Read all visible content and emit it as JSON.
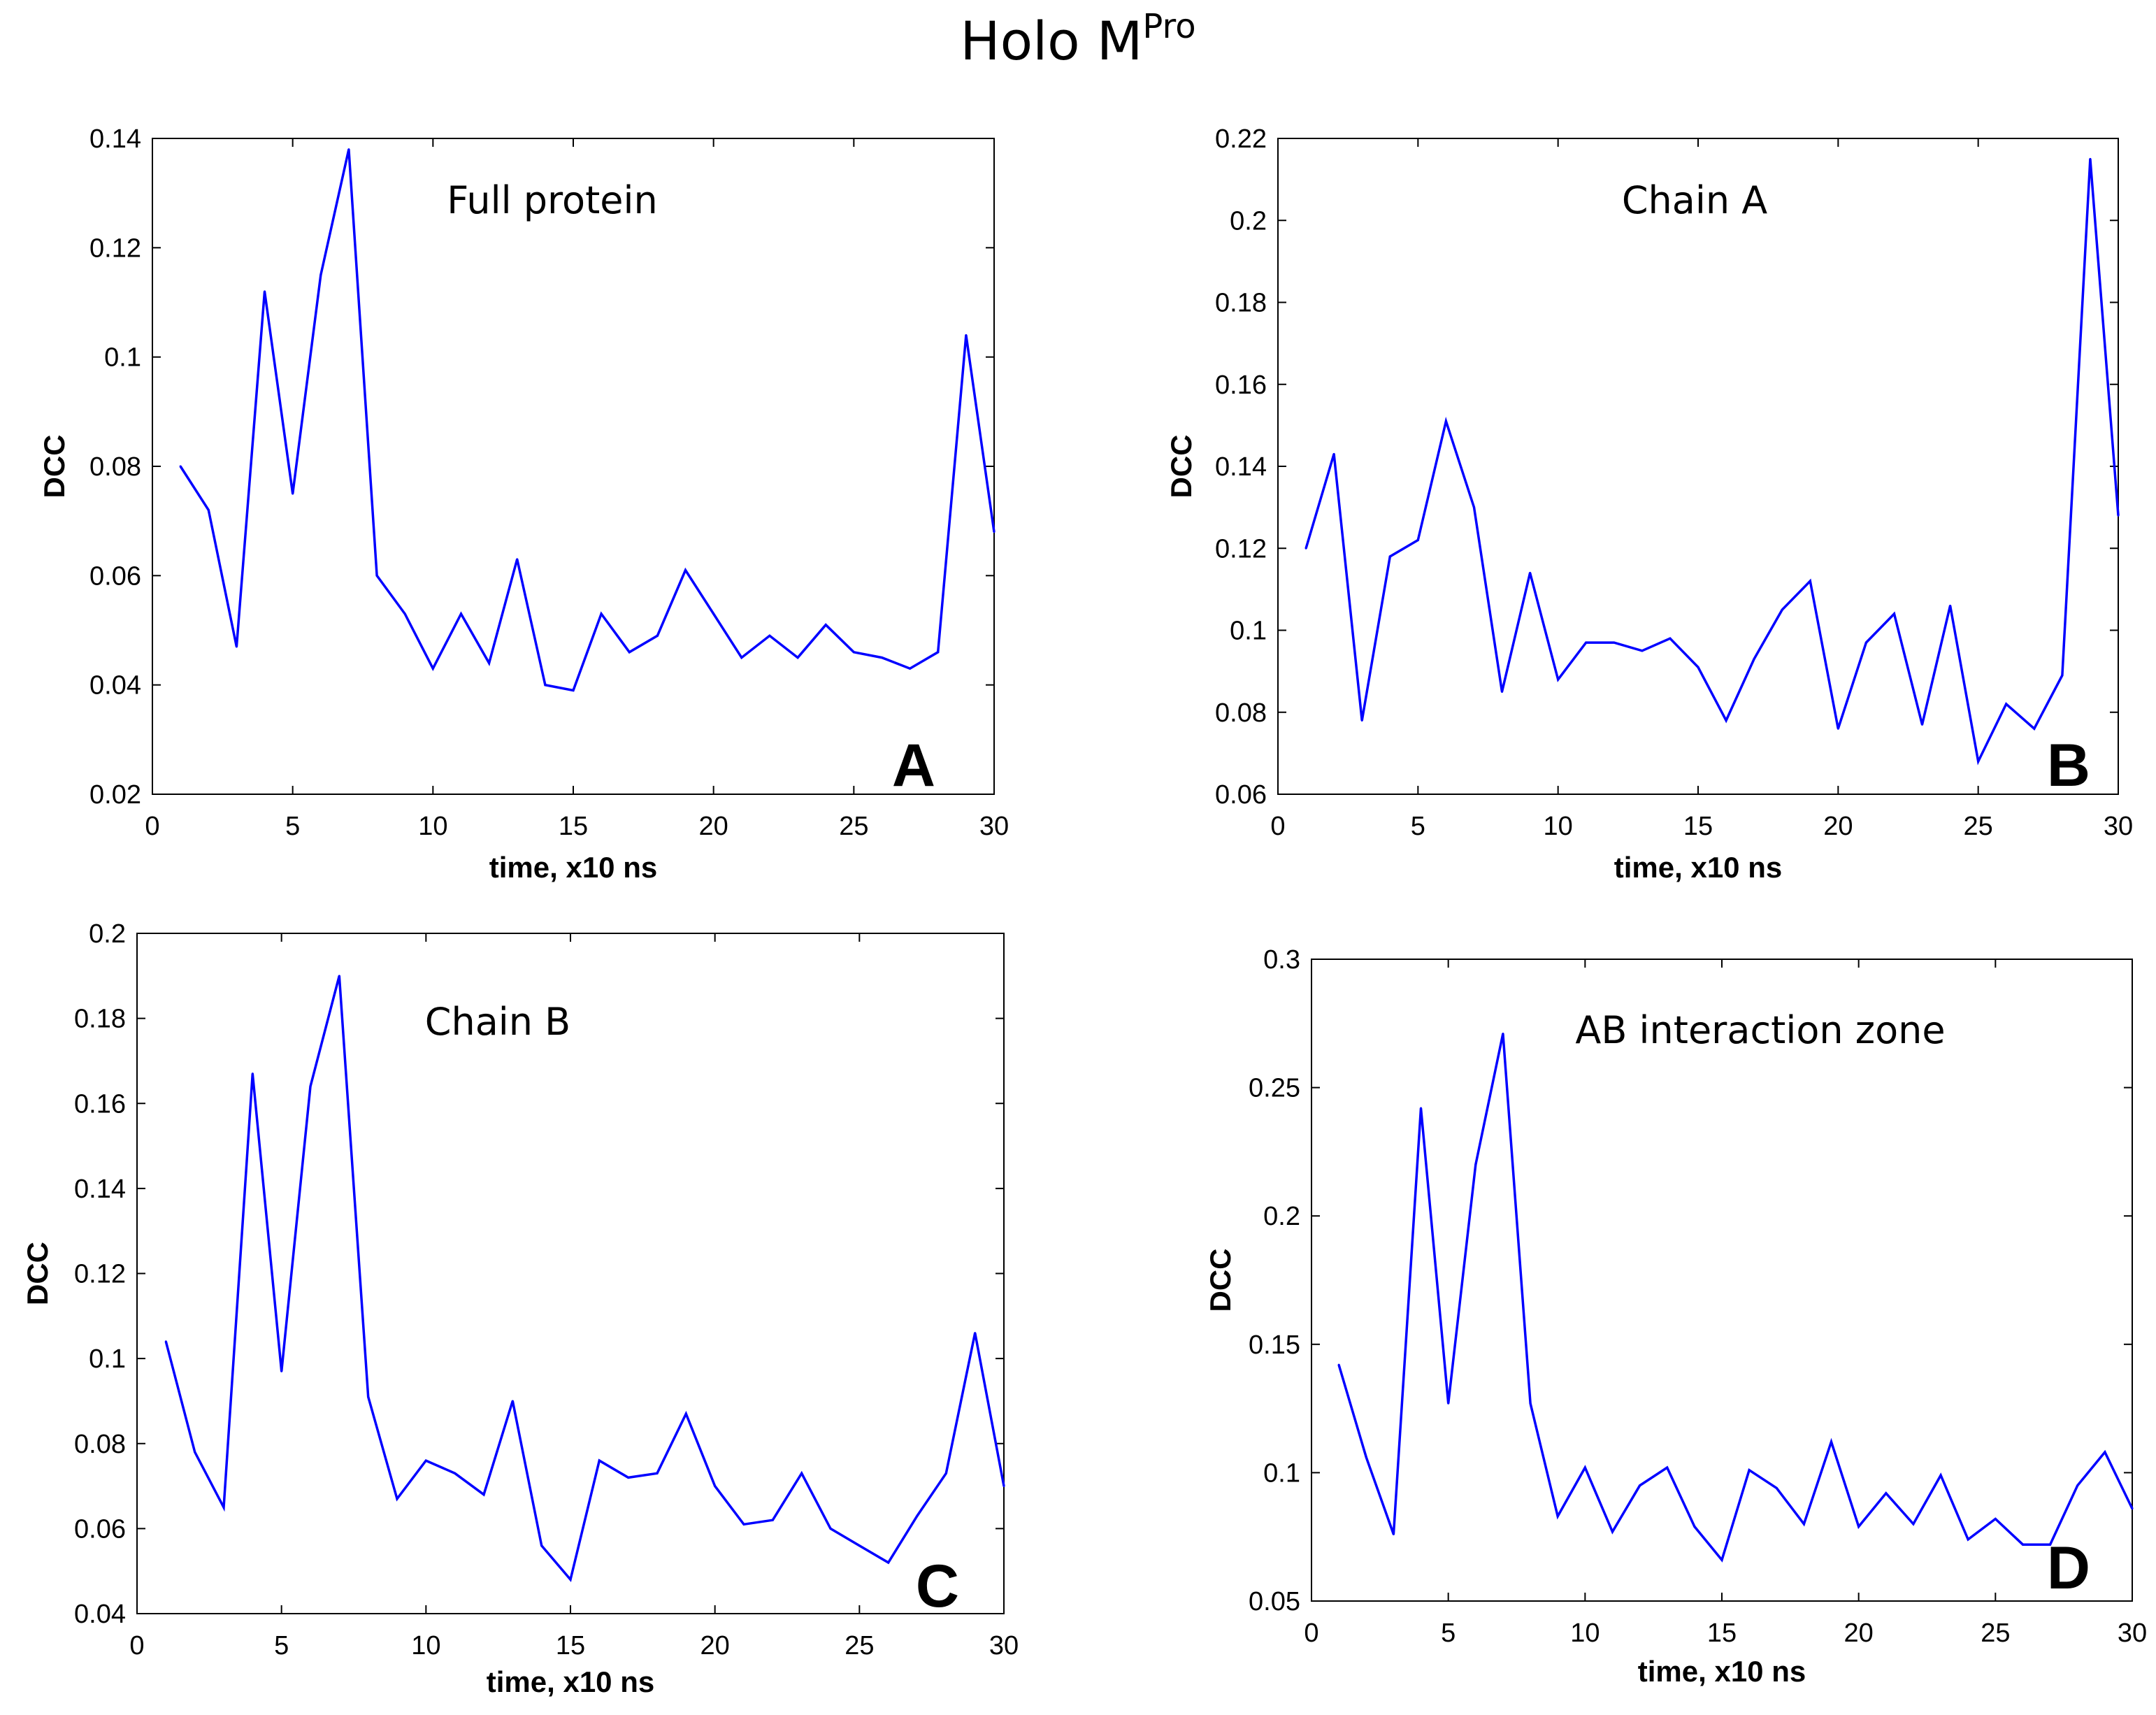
{
  "figure_title": {
    "main": "Holo M",
    "superscript": "Pro"
  },
  "colors": {
    "line": "#0000ff",
    "axis": "#000000",
    "background": "#ffffff"
  },
  "chart_data": [
    {
      "type": "line",
      "panel_letter": "A",
      "title": "Full protein",
      "xlabel": "time, x10 ns",
      "ylabel": "DCC",
      "xlim": [
        0,
        30
      ],
      "ylim": [
        0.02,
        0.14
      ],
      "xticks": [
        0,
        5,
        10,
        15,
        20,
        25,
        30
      ],
      "xtick_labels": [
        "0",
        "5",
        "10",
        "15",
        "20",
        "25",
        "30"
      ],
      "yticks": [
        0.02,
        0.04,
        0.06,
        0.08,
        0.1,
        0.12,
        0.14
      ],
      "ytick_labels": [
        "0.02",
        "0.04",
        "0.06",
        "0.08",
        "0.1",
        "0.12",
        "0.14"
      ],
      "x": [
        1,
        2,
        3,
        4,
        5,
        6,
        7,
        8,
        9,
        10,
        11,
        12,
        13,
        14,
        15,
        16,
        17,
        18,
        19,
        20,
        21,
        22,
        23,
        24,
        25,
        26,
        27,
        28,
        29,
        30
      ],
      "values": [
        0.08,
        0.072,
        0.047,
        0.112,
        0.075,
        0.115,
        0.138,
        0.06,
        0.053,
        0.043,
        0.053,
        0.044,
        0.063,
        0.04,
        0.039,
        0.053,
        0.046,
        0.049,
        0.061,
        0.053,
        0.045,
        0.049,
        0.045,
        0.051,
        0.046,
        0.045,
        0.043,
        0.046,
        0.104,
        0.068
      ]
    },
    {
      "type": "line",
      "panel_letter": "B",
      "title": "Chain A",
      "xlabel": "time, x10 ns",
      "ylabel": "DCC",
      "xlim": [
        0,
        30
      ],
      "ylim": [
        0.06,
        0.22
      ],
      "xticks": [
        0,
        5,
        10,
        15,
        20,
        25,
        30
      ],
      "xtick_labels": [
        "0",
        "5",
        "10",
        "15",
        "20",
        "25",
        "30"
      ],
      "yticks": [
        0.06,
        0.08,
        0.1,
        0.12,
        0.14,
        0.16,
        0.18,
        0.2,
        0.22
      ],
      "ytick_labels": [
        "0.06",
        "0.08",
        "0.1",
        "0.12",
        "0.14",
        "0.16",
        "0.18",
        "0.2",
        "0.22"
      ],
      "x": [
        1,
        2,
        3,
        4,
        5,
        6,
        7,
        8,
        9,
        10,
        11,
        12,
        13,
        14,
        15,
        16,
        17,
        18,
        19,
        20,
        21,
        22,
        23,
        24,
        25,
        26,
        27,
        28,
        29,
        30
      ],
      "values": [
        0.12,
        0.143,
        0.078,
        0.118,
        0.122,
        0.151,
        0.13,
        0.085,
        0.114,
        0.088,
        0.097,
        0.097,
        0.095,
        0.098,
        0.091,
        0.078,
        0.093,
        0.105,
        0.112,
        0.076,
        0.097,
        0.104,
        0.077,
        0.106,
        0.068,
        0.082,
        0.076,
        0.089,
        0.215,
        0.128
      ]
    },
    {
      "type": "line",
      "panel_letter": "C",
      "title": "Chain B",
      "xlabel": "time, x10 ns",
      "ylabel": "DCC",
      "xlim": [
        0,
        30
      ],
      "ylim": [
        0.04,
        0.2
      ],
      "xticks": [
        0,
        5,
        10,
        15,
        20,
        25,
        30
      ],
      "xtick_labels": [
        "0",
        "5",
        "10",
        "15",
        "20",
        "25",
        "30"
      ],
      "yticks": [
        0.04,
        0.06,
        0.08,
        0.1,
        0.12,
        0.14,
        0.16,
        0.18,
        0.2
      ],
      "ytick_labels": [
        "0.04",
        "0.06",
        "0.08",
        "0.1",
        "0.12",
        "0.14",
        "0.16",
        "0.18",
        "0.2"
      ],
      "x": [
        1,
        2,
        3,
        4,
        5,
        6,
        7,
        8,
        9,
        10,
        11,
        12,
        13,
        14,
        15,
        16,
        17,
        18,
        19,
        20,
        21,
        22,
        23,
        24,
        25,
        26,
        27,
        28,
        29,
        30
      ],
      "values": [
        0.104,
        0.078,
        0.065,
        0.167,
        0.097,
        0.164,
        0.19,
        0.091,
        0.067,
        0.076,
        0.073,
        0.068,
        0.09,
        0.056,
        0.048,
        0.076,
        0.072,
        0.073,
        0.087,
        0.07,
        0.061,
        0.062,
        0.073,
        0.06,
        0.056,
        0.052,
        0.063,
        0.073,
        0.106,
        0.07
      ]
    },
    {
      "type": "line",
      "panel_letter": "D",
      "title": "AB interaction zone",
      "xlabel": "time, x10 ns",
      "ylabel": "DCC",
      "xlim": [
        0,
        30
      ],
      "ylim": [
        0.05,
        0.3
      ],
      "xticks": [
        0,
        5,
        10,
        15,
        20,
        25,
        30
      ],
      "xtick_labels": [
        "0",
        "5",
        "10",
        "15",
        "20",
        "25",
        "30"
      ],
      "yticks": [
        0.05,
        0.1,
        0.15,
        0.2,
        0.25,
        0.3
      ],
      "ytick_labels": [
        "0.05",
        "0.1",
        "0.15",
        "0.2",
        "0.25",
        "0.3"
      ],
      "x": [
        1,
        2,
        3,
        4,
        5,
        6,
        7,
        8,
        9,
        10,
        11,
        12,
        13,
        14,
        15,
        16,
        17,
        18,
        19,
        20,
        21,
        22,
        23,
        24,
        25,
        26,
        27,
        28,
        29,
        30
      ],
      "values": [
        0.142,
        0.106,
        0.076,
        0.242,
        0.127,
        0.22,
        0.271,
        0.127,
        0.083,
        0.102,
        0.077,
        0.095,
        0.102,
        0.079,
        0.066,
        0.101,
        0.094,
        0.08,
        0.112,
        0.079,
        0.092,
        0.08,
        0.099,
        0.074,
        0.082,
        0.072,
        0.072,
        0.095,
        0.108,
        0.086
      ]
    }
  ]
}
